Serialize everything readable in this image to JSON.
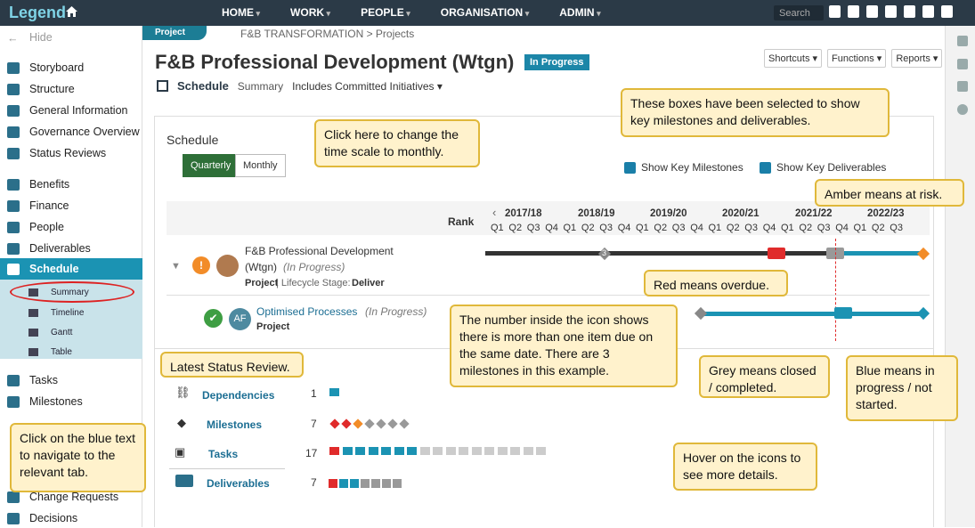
{
  "app": {
    "logo": "Legend",
    "search_placeholder": "Search"
  },
  "nav": [
    "HOME",
    "WORK",
    "PEOPLE",
    "ORGANISATION",
    "ADMIN"
  ],
  "sidebar": {
    "hide": "Hide",
    "items": [
      "Storyboard",
      "Structure",
      "General Information",
      "Governance Overview",
      "Status Reviews",
      "Benefits",
      "Finance",
      "People",
      "Deliverables",
      "Schedule"
    ],
    "sub": [
      "Summary",
      "Timeline",
      "Gantt",
      "Table"
    ],
    "items2": [
      "Tasks",
      "Milestones",
      "Change Requests",
      "Decisions"
    ]
  },
  "breadcrumb": {
    "tab": "Project",
    "path": "F&B TRANSFORMATION > Projects"
  },
  "page": {
    "title": "F&B Professional Development (Wtgn)",
    "status": "In Progress"
  },
  "header_buttons": [
    "Shortcuts ▾",
    "Functions ▾",
    "Reports ▾"
  ],
  "subnav": {
    "schedule": "Schedule",
    "summary": "Summary",
    "include": "Includes Committed Initiatives ▾"
  },
  "schedule": {
    "label": "Schedule",
    "quarterly": "Quarterly",
    "monthly": "Monthly",
    "show_milestones": "Show Key Milestones",
    "show_deliverables": "Show Key Deliverables",
    "rank": "Rank",
    "years": [
      "2017/18",
      "2018/19",
      "2019/20",
      "2020/21",
      "2021/22",
      "2022/23"
    ],
    "quarters": [
      "Q1",
      "Q2",
      "Q3",
      "Q4"
    ],
    "row1": {
      "name1": "F&B Professional Development",
      "name2": "(Wtgn)",
      "status": "(In Progress)",
      "type": "Project",
      "lifecycle": " | Lifecycle Stage: ",
      "stage": "Deliver",
      "count": "3"
    },
    "row2": {
      "initials": "AF",
      "name": "Optimised Processes",
      "status": "(In Progress)",
      "type": "Project"
    }
  },
  "summary": [
    {
      "label": "Dependencies",
      "count": "1"
    },
    {
      "label": "Milestones",
      "count": "7"
    },
    {
      "label": "Tasks",
      "count": "17"
    },
    {
      "label": "Deliverables",
      "count": "7"
    }
  ],
  "callouts": {
    "monthly": "Click here to change the time scale to monthly.",
    "boxes": "These boxes have been selected to show key milestones and deliverables.",
    "amber": "Amber means at risk.",
    "red": "Red means overdue.",
    "number": "The number inside the icon shows there is more than one item due on the same date.  There are 3 milestones in this example.",
    "grey": "Grey means closed / completed.",
    "blue": "Blue means in progress / not started.",
    "status": "Latest Status Review.",
    "bluetext": "Click on the blue text to navigate to the relevant tab.",
    "hover": "Hover on the icons to see more details."
  },
  "colors": {
    "accent": "#1b93b3",
    "amber": "#f28c28",
    "red": "#e02b2b",
    "grey": "#888888",
    "green": "#2e6f38"
  }
}
